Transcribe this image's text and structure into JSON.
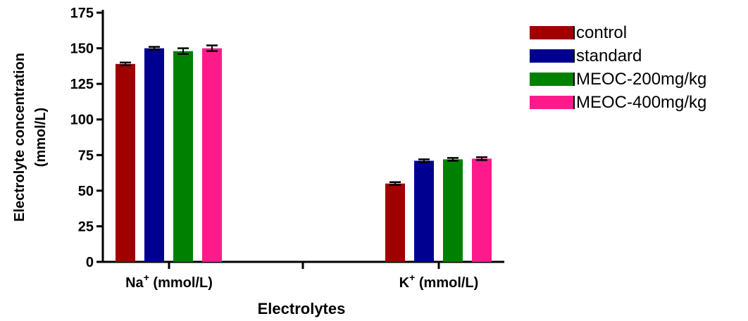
{
  "chart_data": {
    "type": "bar",
    "ylabel": [
      "Electrolyte concentration",
      "(mmol/L)"
    ],
    "xlabel": "Electrolytes",
    "categories": [
      {
        "base": "Na",
        "sup": "+",
        "rest": " (mmol/L)"
      },
      {
        "base": "K",
        "sup": "+",
        "rest": " (mmol/L)"
      }
    ],
    "ylim": [
      0,
      175
    ],
    "yticks": [
      "0",
      "25",
      "50",
      "75",
      "100",
      "125",
      "150",
      "175"
    ],
    "series": [
      {
        "name": "control",
        "color": "#a00000",
        "values": [
          139,
          55
        ],
        "errors": [
          1,
          1
        ]
      },
      {
        "name": "standard",
        "color": "#000090",
        "values": [
          150,
          71
        ],
        "errors": [
          1,
          1
        ]
      },
      {
        "name": "MEOC-200mg/kg",
        "color": "#008000",
        "values": [
          148,
          72
        ],
        "errors": [
          2,
          1
        ]
      },
      {
        "name": "MEOC-400mg/kg",
        "color": "#ff1a8c",
        "values": [
          150,
          72.5
        ],
        "errors": [
          2,
          1
        ]
      }
    ],
    "legend_position": "top-right"
  }
}
